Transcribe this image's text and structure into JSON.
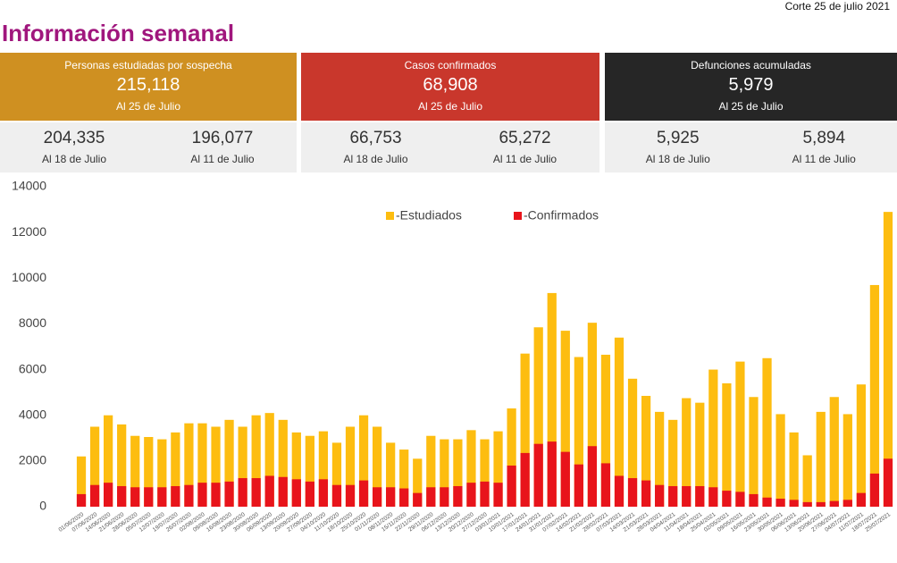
{
  "header": {
    "cut": "Corte 25 de julio 2021",
    "title": "Información semanal"
  },
  "cards": [
    {
      "title": "Personas estudiadas por sospecha",
      "value": "215,118",
      "date": "Al 25 de Julio",
      "history": [
        {
          "value": "204,335",
          "date": "Al 18 de Julio"
        },
        {
          "value": "196,077",
          "date": "Al 11 de Julio"
        }
      ]
    },
    {
      "title": "Casos confirmados",
      "value": "68,908",
      "date": "Al 25 de Julio",
      "history": [
        {
          "value": "66,753",
          "date": "Al 18 de Julio"
        },
        {
          "value": "65,272",
          "date": "Al 11 de Julio"
        }
      ]
    },
    {
      "title": "Defunciones acumuladas",
      "value": "5,979",
      "date": "Al 25 de Julio",
      "history": [
        {
          "value": "5,925",
          "date": "Al 18 de Julio"
        },
        {
          "value": "5,894",
          "date": "Al 11 de Julio"
        }
      ]
    }
  ],
  "chart_data": {
    "type": "bar",
    "barmode": "overlay",
    "categories": [
      "01/06/2020",
      "07/06/2020",
      "14/06/2020",
      "21/06/2020",
      "28/06/2020",
      "05/07/2020",
      "12/07/2020",
      "19/07/2020",
      "26/07/2020",
      "02/08/2020",
      "09/08/2020",
      "16/08/2020",
      "23/08/2020",
      "30/08/2020",
      "06/09/2020",
      "13/09/2020",
      "20/09/2020",
      "27/09/2020",
      "04/10/2020",
      "11/10/2020",
      "18/10/2020",
      "25/10/2020",
      "01/11/2020",
      "08/11/2020",
      "15/11/2020",
      "22/11/2020",
      "29/11/2020",
      "06/12/2020",
      "13/12/2020",
      "20/12/2020",
      "27/12/2020",
      "03/01/2021",
      "10/01/2021",
      "17/01/2021",
      "24/01/2021",
      "31/01/2021",
      "07/02/2021",
      "14/02/2021",
      "21/02/2021",
      "28/02/2021",
      "07/03/2021",
      "14/03/2021",
      "21/03/2021",
      "28/03/2021",
      "04/04/2021",
      "11/04/2021",
      "18/04/2021",
      "25/04/2021",
      "02/05/2021",
      "09/05/2021",
      "16/05/2021",
      "23/05/2021",
      "30/05/2021",
      "06/06/2021",
      "13/06/2021",
      "20/06/2021",
      "27/06/2021",
      "04/07/2021",
      "11/07/2021",
      "18/07/2021",
      "25/07/2021"
    ],
    "series": [
      {
        "name": "-Estudiados",
        "color": "#fdbd10",
        "values": [
          2200,
          3500,
          4000,
          3600,
          3100,
          3050,
          2950,
          3250,
          3650,
          3650,
          3500,
          3800,
          3500,
          4000,
          4100,
          3800,
          3250,
          3100,
          3300,
          2800,
          3500,
          4000,
          3500,
          2800,
          2500,
          2100,
          3100,
          2950,
          2950,
          3350,
          2950,
          3300,
          4300,
          6700,
          7850,
          9350,
          7700,
          6550,
          8050,
          6650,
          7400,
          5600,
          4850,
          4150,
          3800,
          4750,
          4550,
          6000,
          5400,
          6350,
          4800,
          6500,
          4050,
          3250,
          2250,
          4150,
          4800,
          4050,
          5350,
          9700,
          12900
        ]
      },
      {
        "name": "-Confirmados",
        "color": "#e8141b",
        "values": [
          550,
          950,
          1050,
          900,
          850,
          850,
          850,
          900,
          950,
          1050,
          1050,
          1100,
          1250,
          1250,
          1350,
          1300,
          1200,
          1100,
          1200,
          950,
          950,
          1150,
          850,
          850,
          800,
          600,
          850,
          850,
          900,
          1050,
          1100,
          1050,
          1800,
          2350,
          2750,
          2850,
          2400,
          1850,
          2650,
          1900,
          1350,
          1250,
          1150,
          950,
          900,
          900,
          900,
          850,
          700,
          650,
          550,
          400,
          350,
          300,
          200,
          200,
          250,
          300,
          600,
          1450,
          2100
        ]
      }
    ],
    "ylim": [
      0,
      14000
    ],
    "yticks": [
      0,
      2000,
      4000,
      6000,
      8000,
      10000,
      12000,
      14000
    ],
    "grid": false
  }
}
